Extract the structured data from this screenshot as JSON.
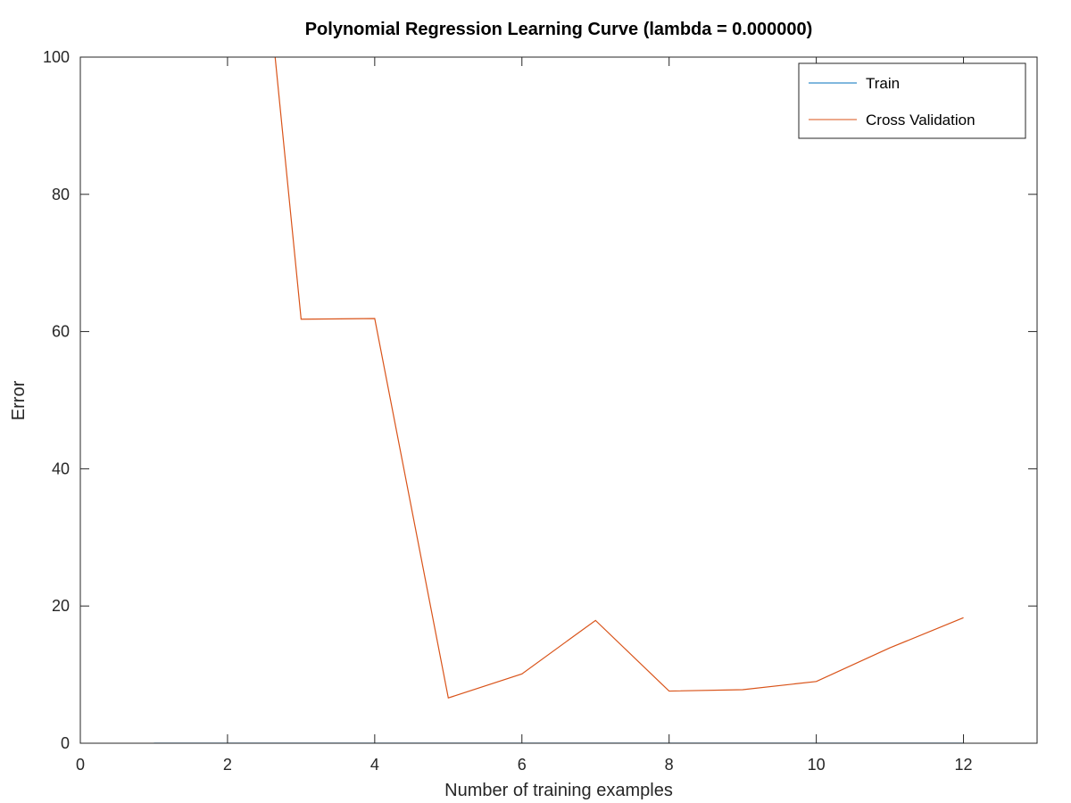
{
  "chart_data": {
    "type": "line",
    "title": "Polynomial Regression Learning Curve (lambda = 0.000000)",
    "xlabel": "Number of training examples",
    "ylabel": "Error",
    "xlim": [
      0,
      13
    ],
    "ylim": [
      0,
      100
    ],
    "xticks": [
      0,
      2,
      4,
      6,
      8,
      10,
      12
    ],
    "yticks": [
      0,
      20,
      40,
      60,
      80,
      100
    ],
    "grid": false,
    "legend_position": "top-right",
    "series": [
      {
        "name": "Train",
        "color": "#0072bd",
        "x": [
          1,
          2,
          3,
          4,
          5,
          6,
          7,
          8,
          9,
          10,
          11,
          12
        ],
        "y": [
          0,
          0,
          0,
          0,
          0,
          0,
          0,
          0,
          0,
          0,
          0,
          0
        ]
      },
      {
        "name": "Cross Validation",
        "color": "#d95319",
        "x": [
          2,
          3,
          4,
          5,
          6,
          7,
          8,
          9,
          10,
          11,
          12
        ],
        "y": [
          170,
          61.8,
          61.9,
          6.6,
          10.1,
          17.9,
          7.6,
          7.8,
          9.0,
          13.9,
          18.3
        ]
      }
    ]
  }
}
